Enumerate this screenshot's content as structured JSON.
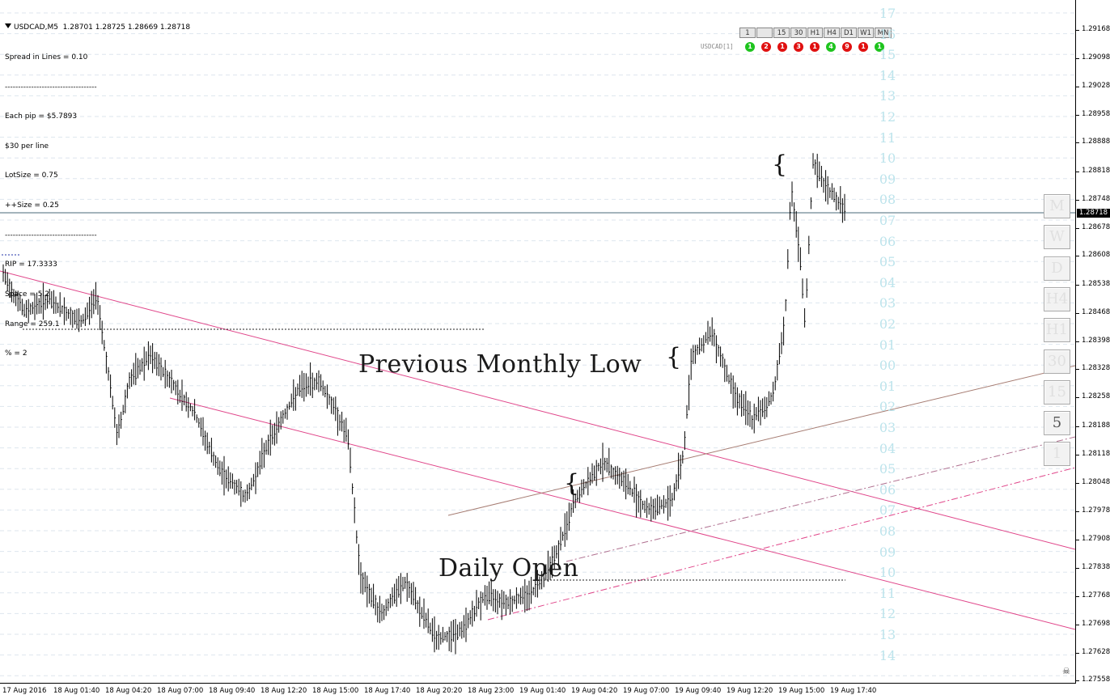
{
  "header": {
    "symbol_title": "USDCAD,M5  1.28701 1.28725 1.28669 1.28718",
    "info_lines": [
      "Spread in Lines = 0.10",
      "-----------------------------------",
      "Each pip = $5.7893",
      "$30 per line",
      "LotSize = 0.75",
      "++Size = 0.25",
      "-----------------------------------",
      "RIP = 17.3333",
      "Space = 5.2",
      "Range = 259.1",
      "% = 2"
    ]
  },
  "timeframe_buttons": [
    "1",
    "",
    "15",
    "30",
    "H1",
    "H4",
    "D1",
    "W1",
    "MN"
  ],
  "signal_panel": {
    "label": "USDCAD[1]",
    "signals": [
      {
        "value": "1",
        "color": "#1ec41e"
      },
      {
        "value": "2",
        "color": "#e01010"
      },
      {
        "value": "1",
        "color": "#e01010"
      },
      {
        "value": "3",
        "color": "#e01010"
      },
      {
        "value": "1",
        "color": "#e01010"
      },
      {
        "value": "4",
        "color": "#1ec41e"
      },
      {
        "value": "9",
        "color": "#e01010"
      },
      {
        "value": "1",
        "color": "#e01010"
      },
      {
        "value": "1",
        "color": "#1ec41e"
      }
    ]
  },
  "side_buttons": [
    "M",
    "W",
    "D",
    "H4",
    "H1",
    "30",
    "15",
    "5",
    "1"
  ],
  "side_active": "5",
  "level_numbers": [
    "17",
    "16",
    "15",
    "14",
    "13",
    "12",
    "11",
    "10",
    "09",
    "08",
    "07",
    "06",
    "05",
    "04",
    "03",
    "02",
    "01",
    "00",
    "01",
    "02",
    "03",
    "04",
    "05",
    "06",
    "07",
    "08",
    "09",
    "10",
    "11",
    "12",
    "13",
    "14"
  ],
  "price_axis": [
    "1.29168",
    "1.29098",
    "1.29028",
    "1.28958",
    "1.28888",
    "1.28818",
    "1.28748",
    "1.28678",
    "1.28608",
    "1.28538",
    "1.28468",
    "1.28398",
    "1.28328",
    "1.28258",
    "1.28188",
    "1.28118",
    "1.28048",
    "1.27978",
    "1.27908",
    "1.27838",
    "1.27768",
    "1.27698",
    "1.27628",
    "1.27558"
  ],
  "current_price": "1.28718",
  "time_axis": [
    "17 Aug 2016",
    "18 Aug 01:40",
    "18 Aug 04:20",
    "18 Aug 07:00",
    "18 Aug 09:40",
    "18 Aug 12:20",
    "18 Aug 15:00",
    "18 Aug 17:40",
    "18 Aug 20:20",
    "18 Aug 23:00",
    "19 Aug 01:40",
    "19 Aug 04:20",
    "19 Aug 07:00",
    "19 Aug 09:40",
    "19 Aug 12:20",
    "19 Aug 15:00",
    "19 Aug 17:40"
  ],
  "annotations": {
    "previous_monthly_low": "Previous Monthly Low",
    "daily_open": "Daily Open",
    "brace": "{"
  },
  "colors": {
    "trendline": "#e0468a",
    "grid": "#dde6ee",
    "levels": "#bde4ec",
    "candles": "#000000",
    "current_price_line": "#4a6a7a"
  },
  "chart_data": {
    "type": "candlestick",
    "symbol": "USDCAD",
    "timeframe": "M5",
    "ohlc_last": {
      "open": 1.28701,
      "high": 1.28725,
      "low": 1.28669,
      "close": 1.28718
    },
    "ylim": [
      1.27558,
      1.29168
    ]
  }
}
